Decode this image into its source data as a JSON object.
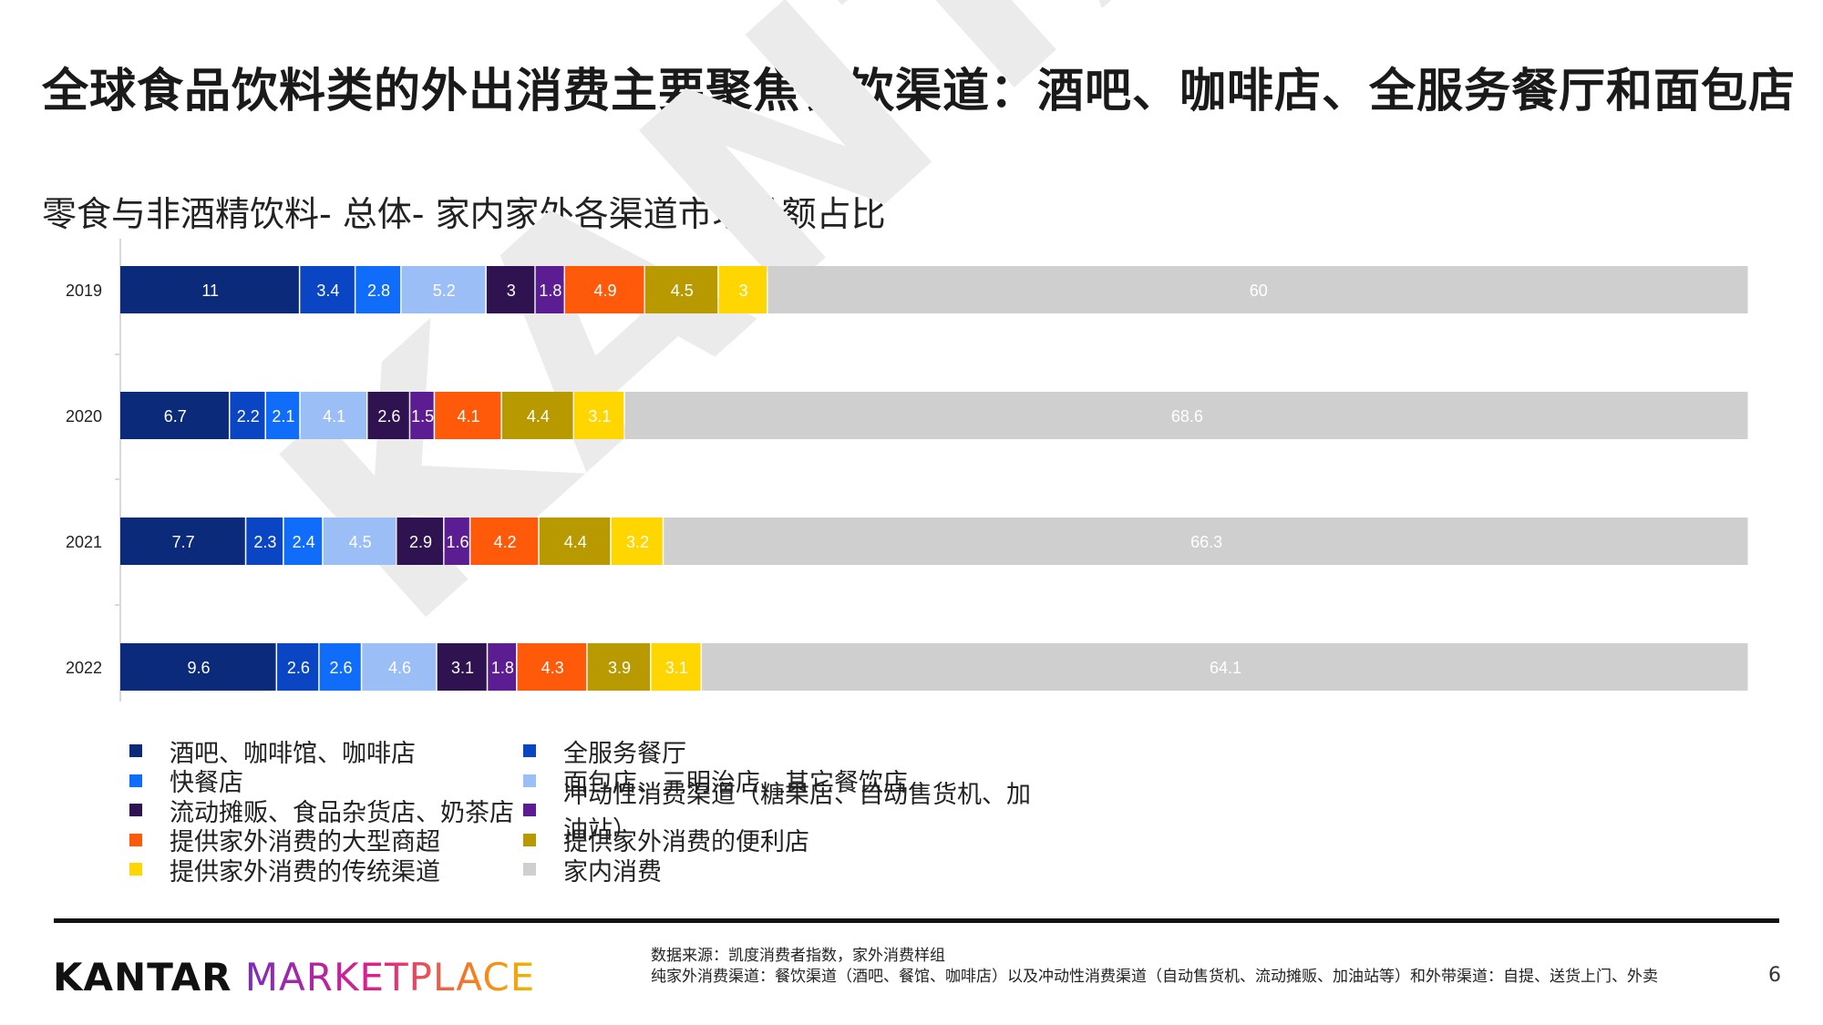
{
  "page": {
    "title": "全球食品饮料类的外出消费主要聚焦餐饮渠道：酒吧、咖啡店、全服务餐厅和面包店",
    "chart_title": "零食与非酒精饮料- 总体- 家内家外各渠道市场份额占比",
    "watermark": "KANTAR",
    "brand_kantar": "KANTAR",
    "brand_marketplace": "MARKETPLACE",
    "source_line1": "数据来源：凯度消费者指数，家外消费样组",
    "source_line2": "纯家外消费渠道：餐饮渠道（酒吧、餐馆、咖啡店）以及冲动性消费渠道（自动售货机、流动摊贩、加油站等）和外带渠道：自提、送货上门、外卖",
    "page_number": "6"
  },
  "chart_data": {
    "type": "bar",
    "orientation": "horizontal",
    "stacked": true,
    "categories": [
      "2019",
      "2020",
      "2021",
      "2022"
    ],
    "series": [
      {
        "name": "酒吧、咖啡馆、咖啡店",
        "color": "#0b2b7a",
        "label_color": "#ffffff",
        "values": [
          11,
          6.7,
          7.7,
          9.6
        ]
      },
      {
        "name": "全服务餐厅",
        "color": "#0a46c4",
        "label_color": "#ffffff",
        "values": [
          3.4,
          2.2,
          2.3,
          2.6
        ]
      },
      {
        "name": "快餐店",
        "color": "#0f6dfa",
        "label_color": "#ffffff",
        "values": [
          2.8,
          2.1,
          2.4,
          2.6
        ]
      },
      {
        "name": "面包店、三明治店、其它餐饮店",
        "color": "#9cbef7",
        "label_color": "#ffffff",
        "values": [
          5.2,
          4.1,
          4.5,
          4.6
        ]
      },
      {
        "name": "流动摊贩、食品杂货店、奶茶店",
        "color": "#2e1350",
        "label_color": "#ffffff",
        "values": [
          3,
          2.6,
          2.9,
          3.1
        ]
      },
      {
        "name": "冲动性消费渠道（糖果店、自动售货机、加油站）",
        "color": "#5b1d91",
        "label_color": "#ffffff",
        "values": [
          1.8,
          1.5,
          1.6,
          1.8
        ]
      },
      {
        "name": "提供家外消费的大型商超",
        "color": "#ff5a0a",
        "label_color": "#ffffff",
        "values": [
          4.9,
          4.1,
          4.2,
          4.3
        ]
      },
      {
        "name": "提供家外消费的便利店",
        "color": "#b89a00",
        "label_color": "#ffffff",
        "values": [
          4.5,
          4.4,
          4.4,
          3.9
        ]
      },
      {
        "name": "提供家外消费的传统渠道",
        "color": "#ffd600",
        "label_color": "#ffffff",
        "values": [
          3,
          3.1,
          3.2,
          3.1
        ]
      },
      {
        "name": "家内消费",
        "color": "#cfcfcf",
        "label_color": "#ffffff",
        "values": [
          60,
          68.6,
          66.3,
          64.1
        ]
      }
    ]
  }
}
